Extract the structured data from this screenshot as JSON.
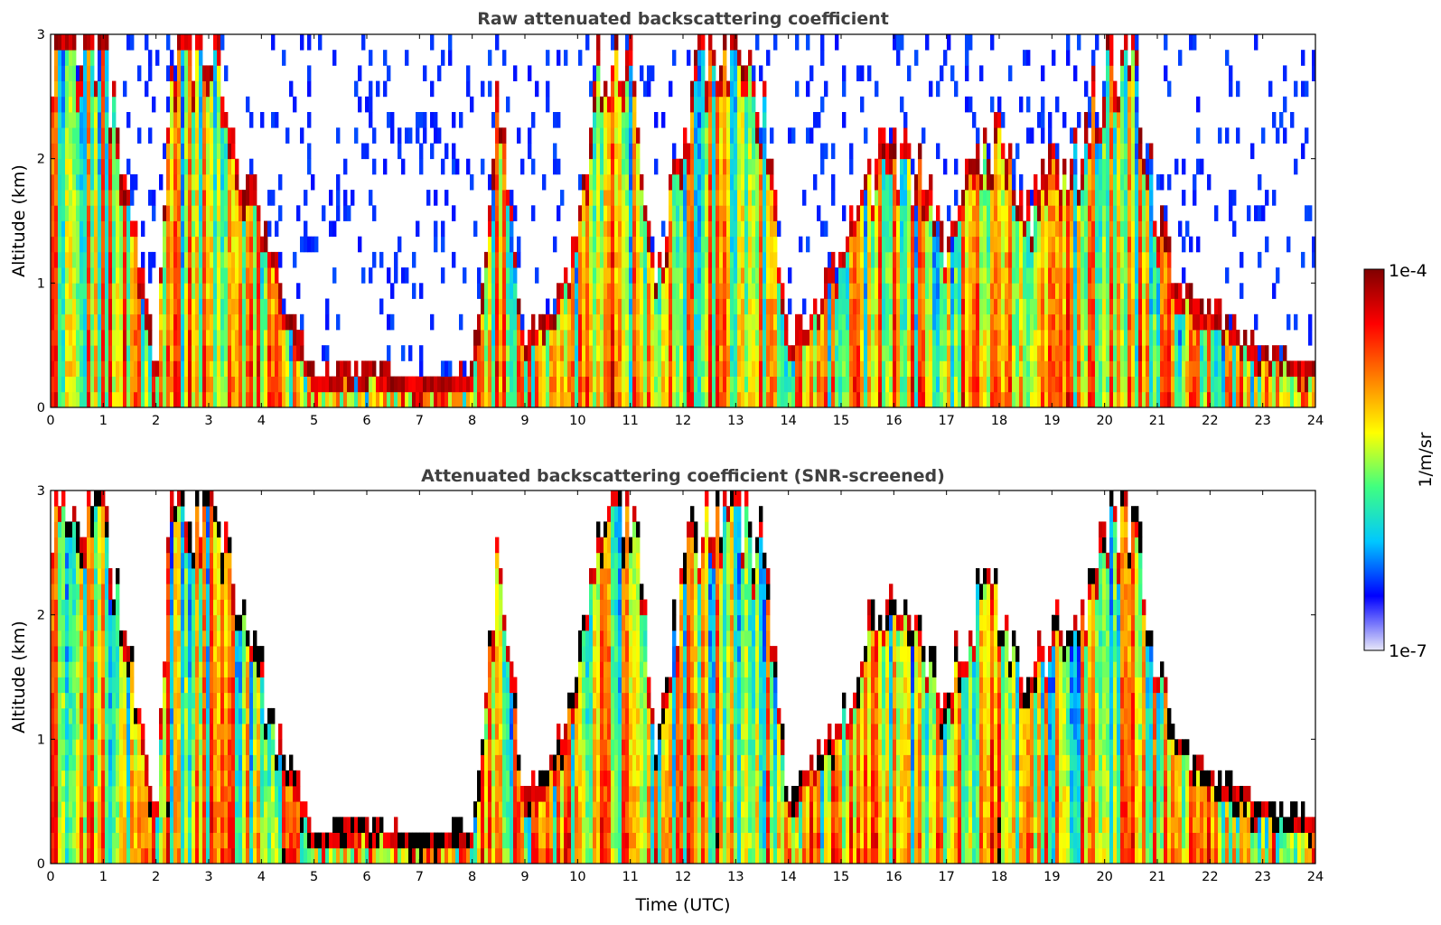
{
  "colors": {
    "scale": [
      "#e8e8f8",
      "#0000ff",
      "#00c8ff",
      "#40ff80",
      "#ffff00",
      "#ff8000",
      "#ff0000",
      "#800000"
    ],
    "screened_strong": "#000000",
    "background": "#ffffff"
  },
  "chart_data": [
    {
      "type": "heatmap",
      "title": "Raw attenuated backscattering coefficient",
      "xlabel": "",
      "ylabel": "Altitude (km)",
      "xlim": [
        0,
        24
      ],
      "ylim": [
        0,
        3
      ],
      "x_ticks": [
        "0",
        "1",
        "2",
        "3",
        "4",
        "5",
        "6",
        "7",
        "8",
        "9",
        "10",
        "11",
        "12",
        "13",
        "14",
        "15",
        "16",
        "17",
        "18",
        "19",
        "20",
        "21",
        "22",
        "23",
        "24"
      ],
      "y_ticks": [
        "0",
        "1",
        "2",
        "3"
      ],
      "value_scale": "log",
      "clim": [
        1e-07,
        0.0001
      ],
      "screened": false,
      "approx_cloud_tops_km": [
        [
          0.0,
          3.0
        ],
        [
          1.0,
          3.0
        ],
        [
          1.5,
          1.7
        ],
        [
          2.0,
          0.3
        ],
        [
          2.3,
          3.0
        ],
        [
          3.0,
          3.0
        ],
        [
          3.6,
          2.0
        ],
        [
          4.0,
          1.5
        ],
        [
          4.5,
          0.8
        ],
        [
          5.0,
          0.3
        ],
        [
          6.0,
          0.35
        ],
        [
          7.0,
          0.25
        ],
        [
          8.0,
          0.3
        ],
        [
          8.5,
          2.5
        ],
        [
          9.0,
          0.5
        ],
        [
          9.8,
          1.1
        ],
        [
          10.5,
          3.0
        ],
        [
          11.0,
          3.0
        ],
        [
          11.5,
          1.0
        ],
        [
          12.0,
          2.3
        ],
        [
          12.5,
          3.0
        ],
        [
          13.0,
          3.0
        ],
        [
          13.5,
          2.5
        ],
        [
          14.0,
          0.5
        ],
        [
          15.0,
          1.2
        ],
        [
          15.5,
          1.9
        ],
        [
          16.0,
          2.0
        ],
        [
          16.5,
          1.9
        ],
        [
          17.0,
          1.3
        ],
        [
          17.5,
          2.1
        ],
        [
          18.0,
          2.2
        ],
        [
          18.5,
          1.5
        ],
        [
          19.0,
          1.9
        ],
        [
          19.5,
          2.0
        ],
        [
          20.0,
          2.7
        ],
        [
          20.5,
          2.9
        ],
        [
          21.0,
          1.6
        ],
        [
          21.5,
          0.9
        ],
        [
          22.0,
          0.8
        ],
        [
          22.5,
          0.6
        ],
        [
          23.0,
          0.5
        ],
        [
          23.5,
          0.45
        ],
        [
          24.0,
          0.35
        ]
      ]
    },
    {
      "type": "heatmap",
      "title": "Attenuated backscattering coefficient (SNR-screened)",
      "xlabel": "Time (UTC)",
      "ylabel": "Altitude (km)",
      "xlim": [
        0,
        24
      ],
      "ylim": [
        0,
        3
      ],
      "x_ticks": [
        "0",
        "1",
        "2",
        "3",
        "4",
        "5",
        "6",
        "7",
        "8",
        "9",
        "10",
        "11",
        "12",
        "13",
        "14",
        "15",
        "16",
        "17",
        "18",
        "19",
        "20",
        "21",
        "22",
        "23",
        "24"
      ],
      "y_ticks": [
        "0",
        "1",
        "2",
        "3"
      ],
      "value_scale": "log",
      "clim": [
        1e-07,
        0.0001
      ],
      "screened": true,
      "approx_cloud_tops_km": [
        [
          0.0,
          3.0
        ],
        [
          1.0,
          3.0
        ],
        [
          1.5,
          1.7
        ],
        [
          2.0,
          0.3
        ],
        [
          2.3,
          3.0
        ],
        [
          3.0,
          3.0
        ],
        [
          3.6,
          2.0
        ],
        [
          4.0,
          1.5
        ],
        [
          4.5,
          0.8
        ],
        [
          5.0,
          0.3
        ],
        [
          6.0,
          0.35
        ],
        [
          7.0,
          0.25
        ],
        [
          8.0,
          0.3
        ],
        [
          8.5,
          2.5
        ],
        [
          9.0,
          0.5
        ],
        [
          9.8,
          1.1
        ],
        [
          10.5,
          3.0
        ],
        [
          11.0,
          3.0
        ],
        [
          11.5,
          1.0
        ],
        [
          12.0,
          2.3
        ],
        [
          12.5,
          3.0
        ],
        [
          13.0,
          3.0
        ],
        [
          13.5,
          2.5
        ],
        [
          14.0,
          0.5
        ],
        [
          15.0,
          1.2
        ],
        [
          15.5,
          1.9
        ],
        [
          16.0,
          2.0
        ],
        [
          16.5,
          1.9
        ],
        [
          17.0,
          1.3
        ],
        [
          17.5,
          2.1
        ],
        [
          18.0,
          2.2
        ],
        [
          18.5,
          1.5
        ],
        [
          19.0,
          1.9
        ],
        [
          19.5,
          2.0
        ],
        [
          20.0,
          2.7
        ],
        [
          20.5,
          2.9
        ],
        [
          21.0,
          1.6
        ],
        [
          21.5,
          0.9
        ],
        [
          22.0,
          0.8
        ],
        [
          22.5,
          0.6
        ],
        [
          23.0,
          0.5
        ],
        [
          23.5,
          0.45
        ],
        [
          24.0,
          0.35
        ]
      ]
    }
  ],
  "colorbar": {
    "max_label": "1e-4",
    "min_label": "1e-7",
    "label": "1/m/sr"
  }
}
